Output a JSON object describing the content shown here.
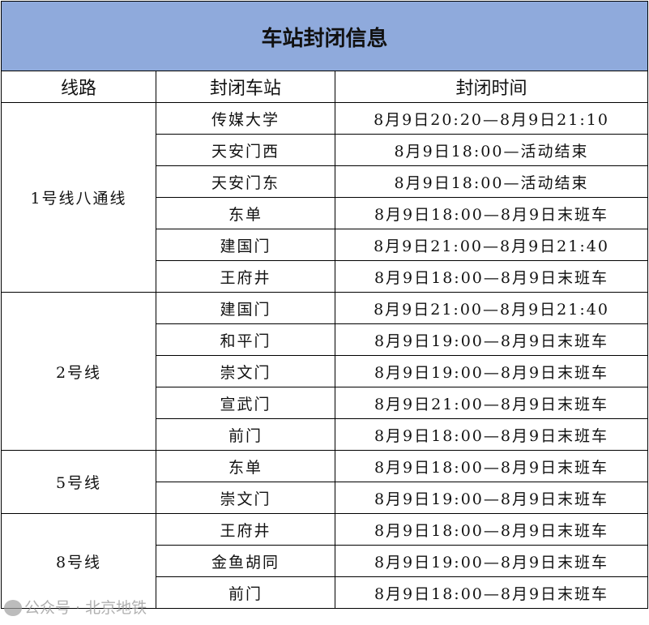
{
  "title": "车站封闭信息",
  "headers": [
    "线路",
    "封闭车站",
    "封闭时间"
  ],
  "groups": [
    {
      "line": "1号线八通线",
      "rows": [
        {
          "station": "传媒大学",
          "time": "8月9日20:20—8月9日21:10"
        },
        {
          "station": "天安门西",
          "time": "8月9日18:00—活动结束"
        },
        {
          "station": "天安门东",
          "time": "8月9日18:00—活动结束"
        },
        {
          "station": "东单",
          "time": "8月9日18:00—8月9日末班车"
        },
        {
          "station": "建国门",
          "time": "8月9日21:00—8月9日21:40"
        },
        {
          "station": "王府井",
          "time": "8月9日18:00—8月9日末班车"
        }
      ]
    },
    {
      "line": "2号线",
      "rows": [
        {
          "station": "建国门",
          "time": "8月9日21:00—8月9日21:40"
        },
        {
          "station": "和平门",
          "time": "8月9日19:00—8月9日末班车"
        },
        {
          "station": "崇文门",
          "time": "8月9日19:00—8月9日末班车"
        },
        {
          "station": "宣武门",
          "time": "8月9日21:00—8月9日末班车"
        },
        {
          "station": "前门",
          "time": "8月9日18:00—8月9日末班车"
        }
      ]
    },
    {
      "line": "5号线",
      "rows": [
        {
          "station": "东单",
          "time": "8月9日18:00—8月9日末班车"
        },
        {
          "station": "崇文门",
          "time": "8月9日19:00—8月9日末班车"
        }
      ]
    },
    {
      "line": "8号线",
      "rows": [
        {
          "station": "王府井",
          "time": "8月9日18:00—8月9日末班车"
        },
        {
          "station": "金鱼胡同",
          "time": "8月9日19:00—8月9日末班车"
        },
        {
          "station": "前门",
          "time": "8月9日18:00—8月9日末班车"
        }
      ]
    }
  ],
  "watermark": "公众号 · 北京地铁",
  "colors": {
    "title_bg": "#8faadc"
  }
}
